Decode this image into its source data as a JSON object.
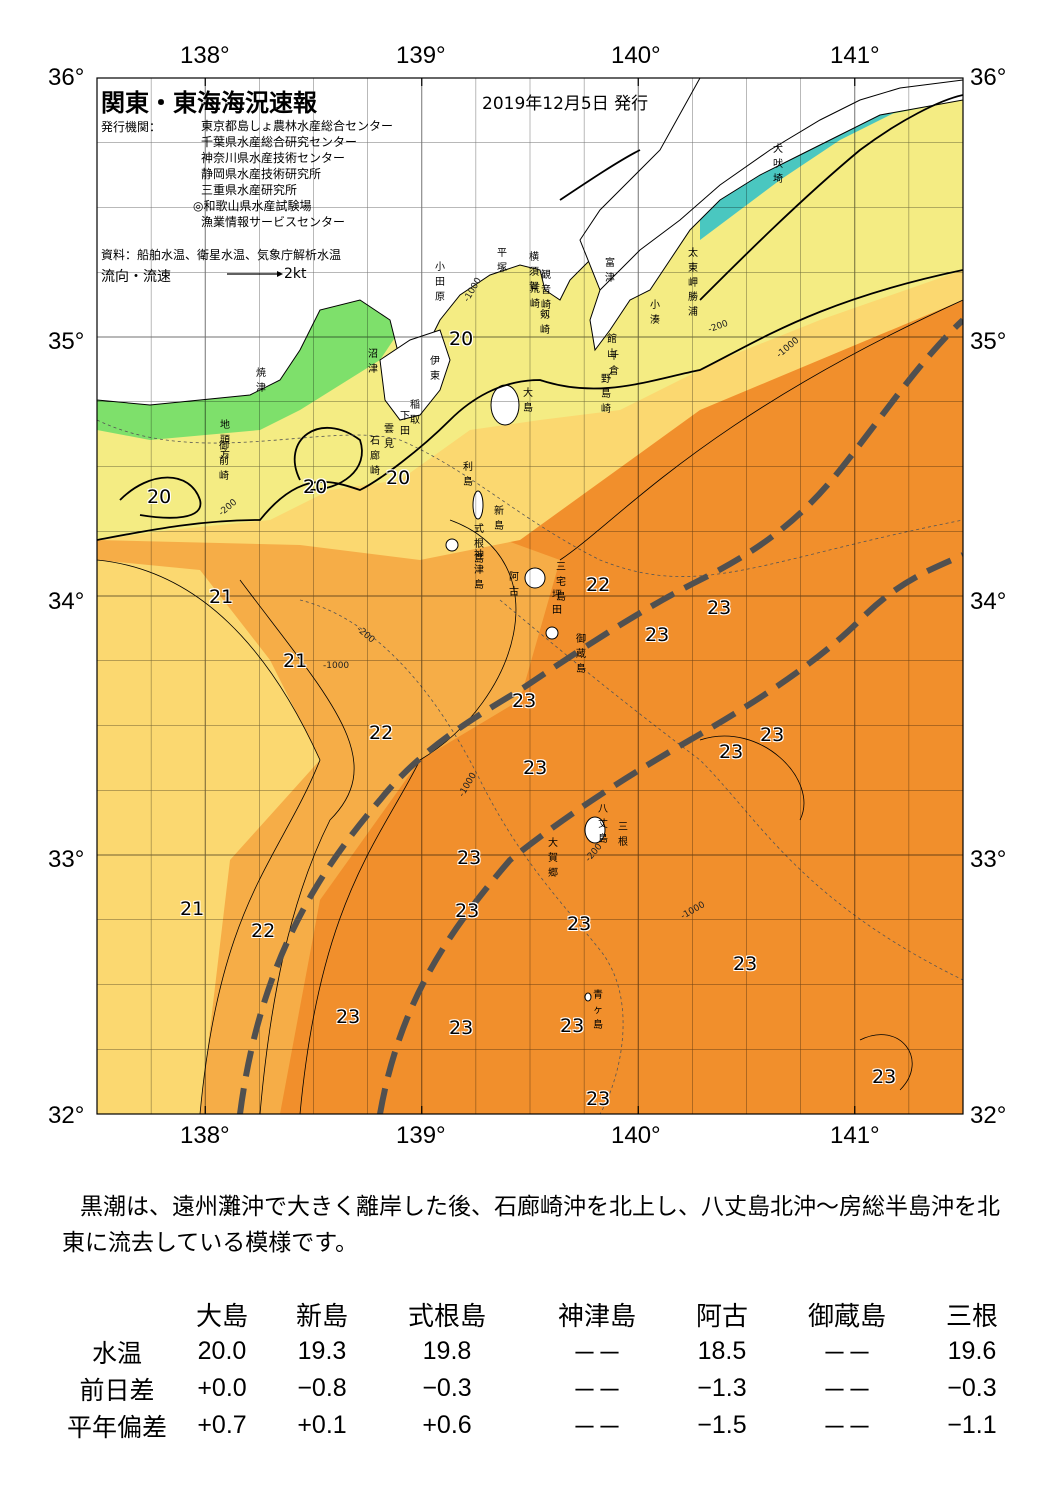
{
  "header": {
    "title": "関東・東海海況速報",
    "date": "2019年12月5日 発行",
    "issuer_label": "発行機関：",
    "issuers": [
      "東京都島しょ農林水産総合センター",
      "千葉県水産総合研究センター",
      "神奈川県水産技術センター",
      "静岡県水産技術研究所",
      "三重県水産研究所",
      "◎和歌山県水産試験場",
      "漁業情報サービスセンター"
    ],
    "source": "資料：船舶水温、衛星水温、気象庁解析水温",
    "legend_label": "流向・流速",
    "legend_speed": "2kt"
  },
  "axes": {
    "lon_labels": [
      "138°",
      "139°",
      "140°",
      "141°"
    ],
    "lat_labels": [
      "36°",
      "35°",
      "34°",
      "33°",
      "32°"
    ]
  },
  "place_labels": [
    "犬吠埼",
    "太東岬",
    "勝浦",
    "小湊",
    "富津",
    "館山",
    "千倉",
    "野島崎",
    "平塚",
    "横須賀",
    "観音崎",
    "荒崎",
    "剱崎",
    "小田原",
    "沼津",
    "伊東",
    "稲取",
    "下田",
    "雲見",
    "石廊崎",
    "焼津",
    "地頭方",
    "御前崎",
    "大島",
    "利島",
    "新島",
    "式根島",
    "神津島",
    "三宅島",
    "阿古",
    "坪田",
    "御蔵島",
    "八丈島",
    "三根",
    "大賀郷",
    "青ヶ島"
  ],
  "isotherm_labels": [
    "20",
    "20",
    "20",
    "20",
    "21",
    "21",
    "21",
    "22",
    "22",
    "22",
    "22",
    "23",
    "23",
    "23",
    "23",
    "23",
    "23",
    "23",
    "23",
    "23",
    "23",
    "23",
    "23",
    "23",
    "23",
    "23"
  ],
  "depth_labels": [
    "-1000",
    "-200",
    "-1000",
    "-200",
    "-1000",
    "-200",
    "-1000",
    "-200",
    "-1000"
  ],
  "colors": {
    "ocean_23": "#f18f2c",
    "ocean_22": "#f6ad47",
    "ocean_21": "#fbd870",
    "ocean_20": "#f4ec83",
    "ocean_cold": "#7ee06b",
    "bay_blue": "#3aa0e8",
    "kuroshio_axis": "#505050"
  },
  "description": {
    "text": "黒潮は、遠州灘沖で大きく離岸した後、石廊崎沖を北上し、八丈島北沖～房総半島沖を北東に流去している模様です。"
  },
  "table": {
    "headers": [
      "大島",
      "新島",
      "式根島",
      "神津島",
      "阿古",
      "御蔵島",
      "三根"
    ],
    "rows": [
      {
        "label": "水温",
        "values": [
          "20.0",
          "19.3",
          "19.8",
          "－－",
          "18.5",
          "－－",
          "19.6"
        ]
      },
      {
        "label": "前日差",
        "values": [
          "+0.0",
          "−0.8",
          "−0.3",
          "－－",
          "−1.3",
          "－－",
          "−0.3"
        ]
      },
      {
        "label": "平年偏差",
        "values": [
          "+0.7",
          "+0.1",
          "+0.6",
          "－－",
          "−1.5",
          "－－",
          "−1.1"
        ]
      }
    ]
  }
}
